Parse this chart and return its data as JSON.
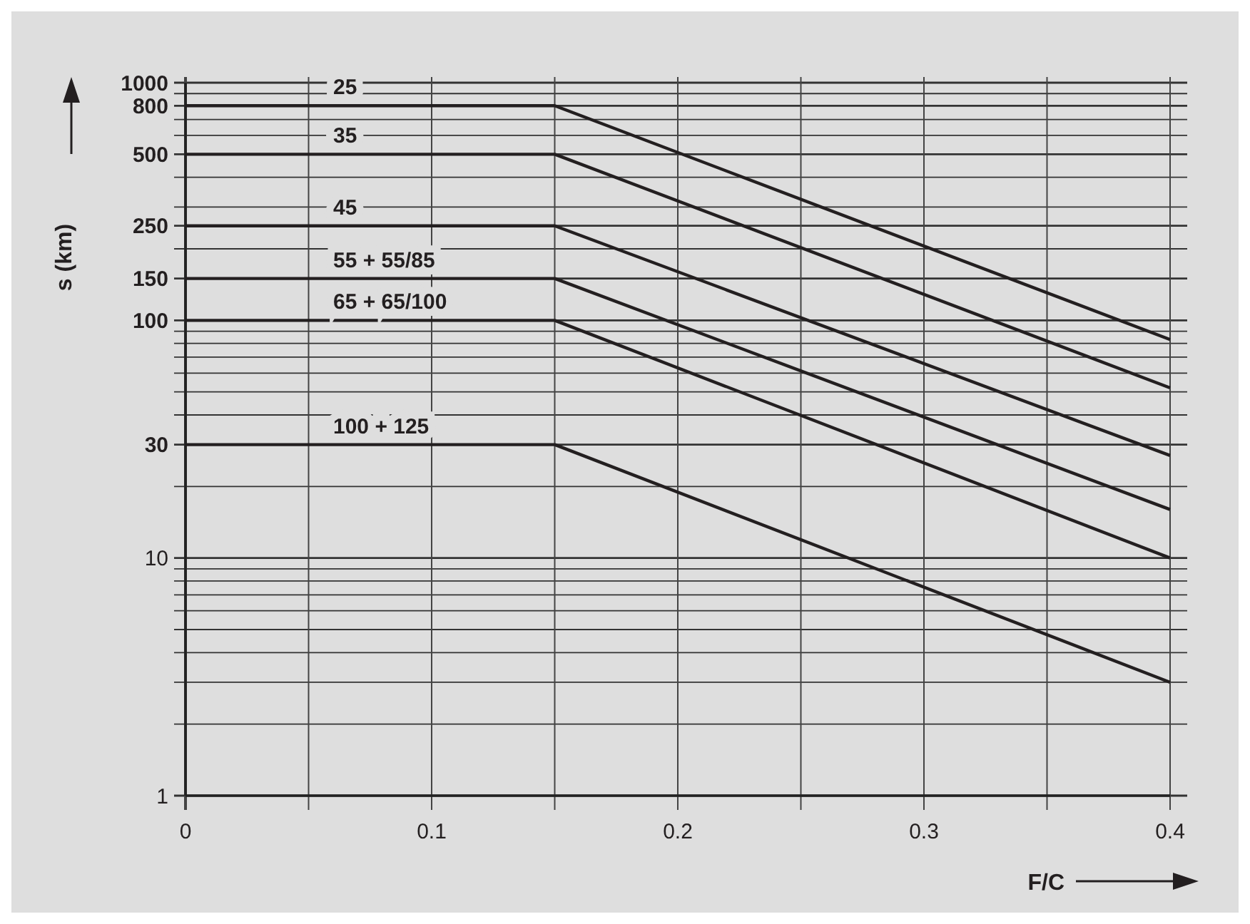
{
  "chart_data": {
    "type": "line",
    "xlabel": "F/C",
    "ylabel": "s (km)",
    "log": "y",
    "grid": true,
    "marker": "none",
    "line_style": "solid",
    "x": [
      0,
      0.15,
      0.4
    ],
    "xlim": [
      0,
      0.4
    ],
    "xticks": [
      0,
      {
        "value": 0.05,
        "label": null
      },
      0.1,
      {
        "value": 0.15,
        "label": null
      },
      0.2,
      {
        "value": 0.25,
        "label": null
      },
      0.3,
      {
        "value": 0.35,
        "label": null
      },
      0.4
    ],
    "ylim": [
      1,
      1000
    ],
    "yticks": [
      1,
      {
        "value": 2,
        "label": null
      },
      {
        "value": 3,
        "label": null
      },
      {
        "value": 4,
        "label": null
      },
      {
        "value": 5,
        "label": null
      },
      {
        "value": 6,
        "label": null
      },
      {
        "value": 7,
        "label": null
      },
      {
        "value": 8,
        "label": null
      },
      {
        "value": 9,
        "label": null
      },
      10,
      {
        "value": 20,
        "label": null
      },
      30,
      {
        "value": 40,
        "label": null
      },
      {
        "value": 50,
        "label": null
      },
      {
        "value": 60,
        "label": null
      },
      {
        "value": 70,
        "label": null
      },
      {
        "value": 80,
        "label": null
      },
      {
        "value": 90,
        "label": null
      },
      100,
      150,
      {
        "value": 200,
        "label": null
      },
      250,
      {
        "value": 300,
        "label": null
      },
      {
        "value": 400,
        "label": null
      },
      500,
      {
        "value": 600,
        "label": null
      },
      {
        "value": 700,
        "label": null
      },
      800,
      {
        "value": 900,
        "label": null
      },
      1000
    ],
    "series": [
      {
        "name": "25",
        "color": "#231f20",
        "values": [
          800,
          800,
          83
        ]
      },
      {
        "name": "35",
        "color": "#231f20",
        "values": [
          500,
          500,
          52
        ]
      },
      {
        "name": "45",
        "color": "#231f20",
        "values": [
          250,
          250,
          27
        ]
      },
      {
        "name": "55 + 55/85",
        "color": "#231f20",
        "values": [
          150,
          150,
          16
        ]
      },
      {
        "name": "65 + 65/100",
        "color": "#231f20",
        "values": [
          100,
          100,
          10
        ]
      },
      {
        "name": "100 + 125",
        "color": "#231f20",
        "values": [
          30,
          30,
          3
        ]
      }
    ]
  }
}
